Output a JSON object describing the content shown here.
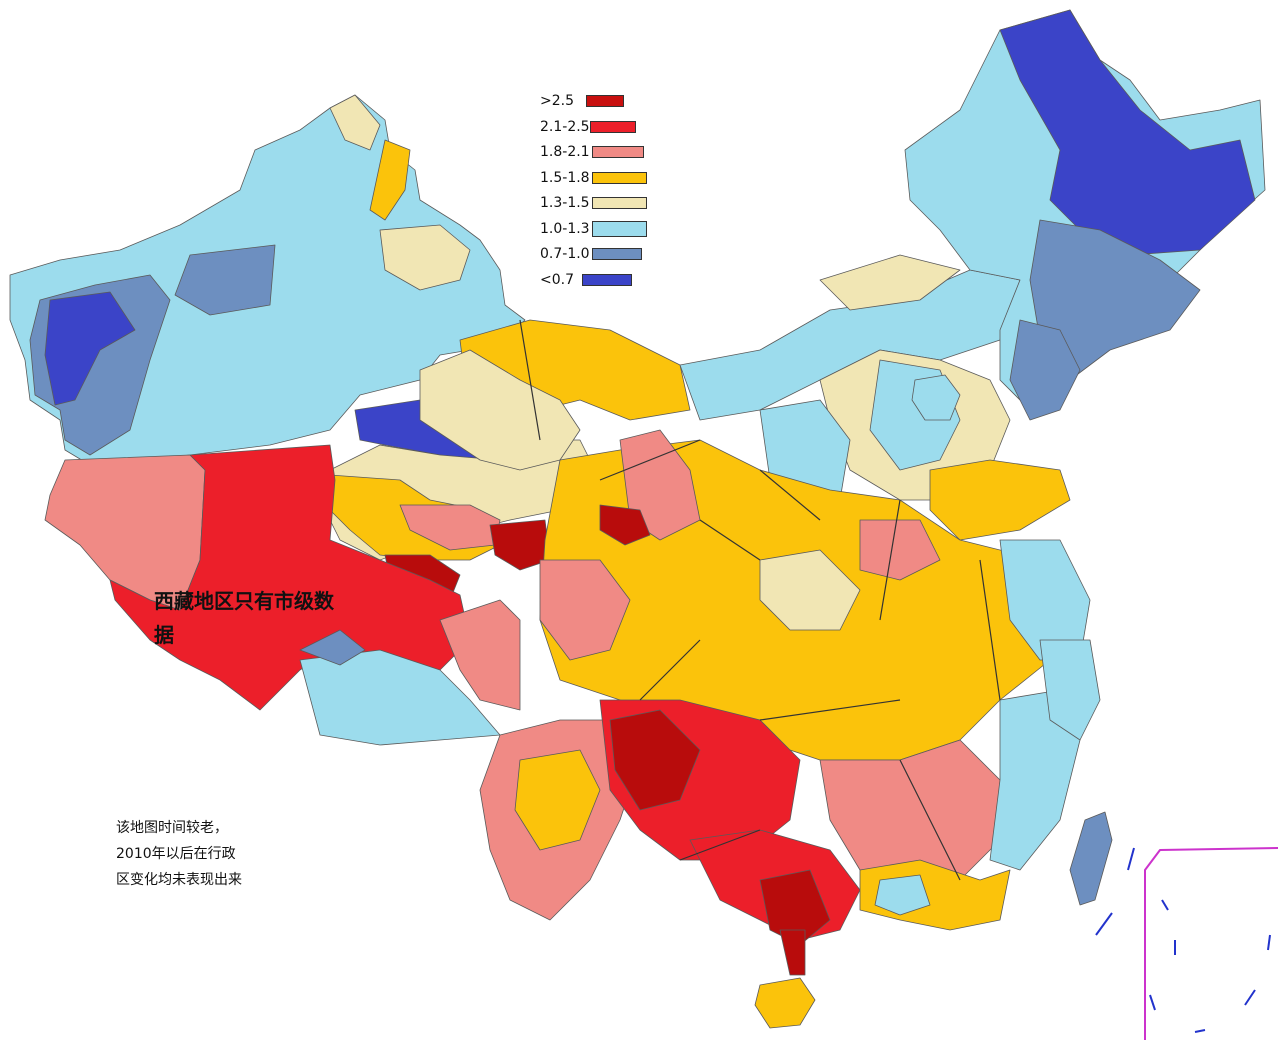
{
  "legend": {
    "items": [
      {
        "label": ">2.5",
        "color": "#c8100f"
      },
      {
        "label": "2.1-2.5",
        "color": "#ec1f2a"
      },
      {
        "label": "1.8-2.1",
        "color": "#f08a85"
      },
      {
        "label": "1.5-1.8",
        "color": "#fbc30b"
      },
      {
        "label": "1.3-1.5",
        "color": "#f1e6b4"
      },
      {
        "label": "1.0-1.3",
        "color": "#9cdced"
      },
      {
        "label": "0.7-1.0",
        "color": "#6d8fc0"
      },
      {
        "label": "<0.7",
        "color": "#3b44c8"
      }
    ]
  },
  "annotations": {
    "tibet_note": "西藏地区只有市级数据",
    "age_note": "该地图时间较老，2010年以后在行政区变化均未表现出来"
  },
  "map": {
    "region_colors": {
      "very_high": "#b80c0c",
      "high": "#ec1f2a",
      "mid_high": "#f08a85",
      "mid": "#fbc30b",
      "mid_low": "#f1e6b4",
      "low": "#9cdced",
      "lower": "#6d8fc0",
      "lowest": "#3b44c8",
      "inset_frame": "#cc33cc"
    }
  }
}
